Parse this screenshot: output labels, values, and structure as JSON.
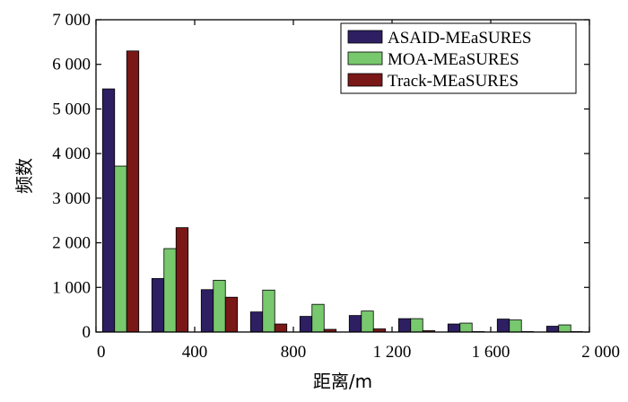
{
  "chart_data": {
    "type": "bar",
    "title": "",
    "xlabel": "距离/m",
    "ylabel": "频数",
    "xlim": [
      0,
      2000
    ],
    "ylim": [
      0,
      7000
    ],
    "x_ticks": [
      0,
      400,
      800,
      1200,
      1600,
      2000
    ],
    "x_tick_labels": [
      "0",
      "400",
      "800",
      "1 200",
      "1 600",
      "2 000"
    ],
    "y_ticks": [
      0,
      1000,
      2000,
      3000,
      4000,
      5000,
      6000,
      7000
    ],
    "y_tick_labels": [
      "0",
      "1 000",
      "2 000",
      "3 000",
      "4 000",
      "5 000",
      "6 000",
      "7 000"
    ],
    "bin_centers": [
      100,
      300,
      500,
      700,
      900,
      1100,
      1300,
      1500,
      1700,
      1900
    ],
    "series": [
      {
        "name": "ASAID-MEaSURES",
        "color": "#2e1f63",
        "values": [
          5450,
          1200,
          950,
          450,
          350,
          370,
          300,
          180,
          290,
          130
        ]
      },
      {
        "name": "MOA-MEaSURES",
        "color": "#78c86e",
        "values": [
          3720,
          1870,
          1160,
          940,
          620,
          470,
          300,
          200,
          270,
          160
        ]
      },
      {
        "name": "Track-MEaSURES",
        "color": "#7a1717",
        "values": [
          6300,
          2340,
          780,
          180,
          60,
          70,
          30,
          10,
          10,
          10
        ]
      }
    ],
    "grid": false,
    "legend_position": "top-right"
  }
}
